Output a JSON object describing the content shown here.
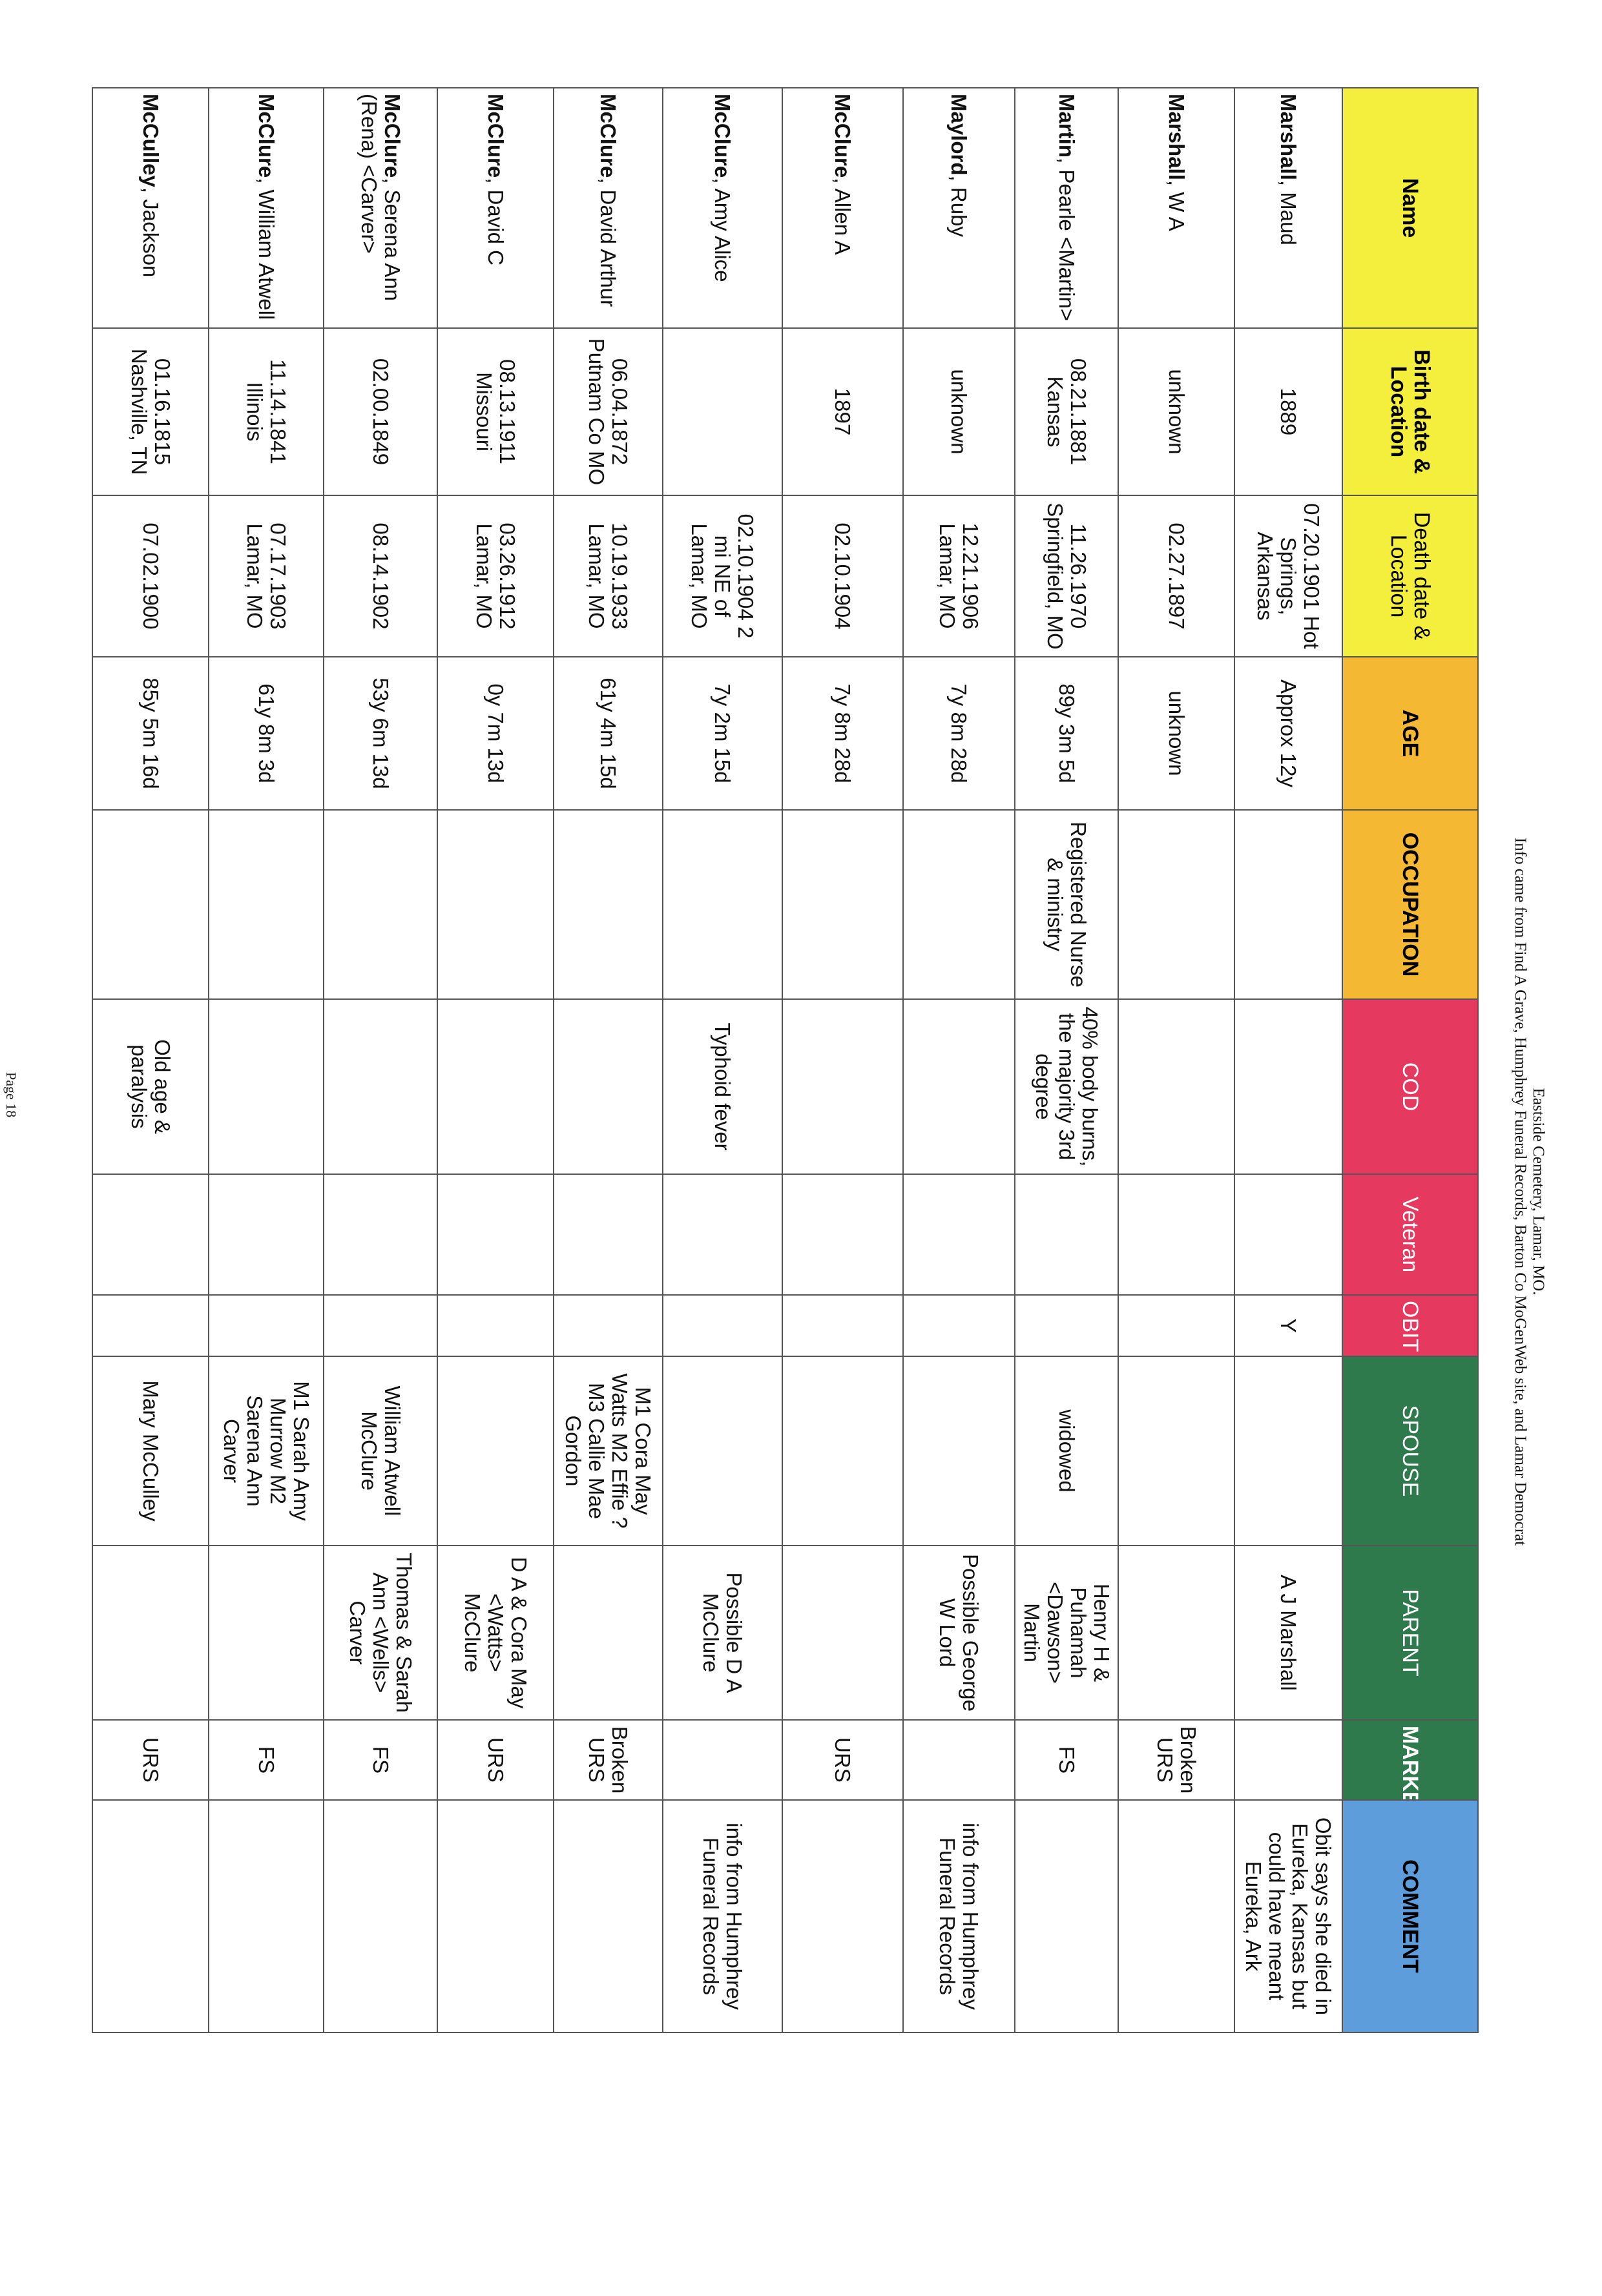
{
  "caption": {
    "title": "Eastside Cemetery, Lamar, MO.",
    "source": "Info came from Find A Grave, Humphrey Funeral Records, Barton Co MoGenWeb site, and Lamar Democrat"
  },
  "colors": {
    "yellow": "#f4ee3c",
    "orange": "#f5b833",
    "red": "#e6395f",
    "green": "#2f7a4c",
    "blue": "#5d9ddb"
  },
  "columns": [
    {
      "label": "Name",
      "color": "yellow",
      "bold": true,
      "text": "#000"
    },
    {
      "label": "Birth date & Location",
      "color": "yellow",
      "bold": true,
      "text": "#000"
    },
    {
      "label": "Death date & Location",
      "color": "yellow",
      "bold": false,
      "text": "#000"
    },
    {
      "label": "AGE",
      "color": "orange",
      "bold": true,
      "text": "#000"
    },
    {
      "label": "OCCUPATION",
      "color": "orange",
      "bold": true,
      "text": "#000"
    },
    {
      "label": "COD",
      "color": "red",
      "bold": false,
      "text": "#fff"
    },
    {
      "label": "Veteran",
      "color": "red",
      "bold": false,
      "text": "#fff"
    },
    {
      "label": "OBIT",
      "color": "red",
      "bold": false,
      "text": "#fff"
    },
    {
      "label": "SPOUSE",
      "color": "green",
      "bold": false,
      "text": "#fff"
    },
    {
      "label": "PARENT",
      "color": "green",
      "bold": false,
      "text": "#fff"
    },
    {
      "label": "MARKER",
      "color": "green",
      "bold": true,
      "text": "#fff"
    },
    {
      "label": "COMMENT",
      "color": "blue",
      "bold": true,
      "text": "#000"
    }
  ],
  "rows": [
    {
      "surname": "Marshall",
      "given": "Maud",
      "birth": "1889",
      "death": "07.20.1901 Hot Springs, Arkansas",
      "age": "Approx 12y",
      "occupation": "",
      "cod": "",
      "veteran": "",
      "obit": "Y",
      "spouse": "",
      "parent": "A J Marshall",
      "marker": "",
      "comment": "Obit says she died in Eureka, Kansas but could have meant Eureka, Ark"
    },
    {
      "surname": "Marshall",
      "given": "W A",
      "birth": "unknown",
      "death": "02.27.1897",
      "age": "unknown",
      "occupation": "",
      "cod": "",
      "veteran": "",
      "obit": "",
      "spouse": "",
      "parent": "",
      "marker": "Broken URS",
      "comment": ""
    },
    {
      "surname": "Martin",
      "given": "Pearle <Martin>",
      "birth": "08.21.1881 Kansas",
      "death": "11.26.1970 Springfield, MO",
      "age": "89y 3m 5d",
      "occupation": "Registered Nurse & ministry",
      "cod": "40% body burns, the majority 3rd degree",
      "veteran": "",
      "obit": "",
      "spouse": "widowed",
      "parent": "Henry H & Puhamah <Dawson> Martin",
      "marker": "FS",
      "comment": ""
    },
    {
      "surname": "Maylord",
      "given": "Ruby",
      "birth": "unknown",
      "death": "12.21.1906 Lamar, MO",
      "age": "7y 8m 28d",
      "occupation": "",
      "cod": "",
      "veteran": "",
      "obit": "",
      "spouse": "",
      "parent": "Possible George W Lord",
      "marker": "",
      "comment": "info from Humphrey Funeral Records"
    },
    {
      "surname": "McClure",
      "given": "Allen A",
      "birth": "1897",
      "death": "02.10.1904",
      "age": "7y 8m 28d",
      "occupation": "",
      "cod": "",
      "veteran": "",
      "obit": "",
      "spouse": "",
      "parent": "",
      "marker": "URS",
      "comment": ""
    },
    {
      "surname": "McClure",
      "given": "Amy Alice",
      "birth": "",
      "death": "02.10.1904 2 mi NE of Lamar, MO",
      "age": "7y 2m 15d",
      "occupation": "",
      "cod": "Typhoid fever",
      "veteran": "",
      "obit": "",
      "spouse": "",
      "parent": "Possible D A McClure",
      "marker": "",
      "comment": "info from Humphrey Funeral Records"
    },
    {
      "surname": "McClure",
      "given": "David Arthur",
      "birth": "06.04.1872 Putnam Co MO",
      "death": "10.19.1933 Lamar, MO",
      "age": "61y 4m 15d",
      "occupation": "",
      "cod": "",
      "veteran": "",
      "obit": "",
      "spouse": "M1 Cora May Watts M2 Effie ? M3 Callie Mae Gordon",
      "parent": "",
      "marker": "Broken URS",
      "comment": ""
    },
    {
      "surname": "McClure",
      "given": "David C",
      "birth": "08.13.1911 Missouri",
      "death": "03.26.1912 Lamar, MO",
      "age": "0y 7m 13d",
      "occupation": "",
      "cod": "",
      "veteran": "",
      "obit": "",
      "spouse": "",
      "parent": "D A & Cora May <Watts> McClure",
      "marker": "URS",
      "comment": ""
    },
    {
      "surname": "McClure",
      "given": "Serena Ann (Rena) <Carver>",
      "birth": "02.00.1849",
      "death": "08.14.1902",
      "age": "53y 6m 13d",
      "occupation": "",
      "cod": "",
      "veteran": "",
      "obit": "",
      "spouse": "William Atwell McClure",
      "parent": "Thomas & Sarah Ann <Wells> Carver",
      "marker": "FS",
      "comment": ""
    },
    {
      "surname": "McClure",
      "given": "William Atwell",
      "birth": "11.14.1841 Illinois",
      "death": "07.17.1903 Lamar, MO",
      "age": "61y 8m 3d",
      "occupation": "",
      "cod": "",
      "veteran": "",
      "obit": "",
      "spouse": "M1 Sarah Amy Murrow M2 Sarena Ann Carver",
      "parent": "",
      "marker": "FS",
      "comment": ""
    },
    {
      "surname": "McCulley",
      "given": "Jackson",
      "birth": "01.16.1815 Nashville, TN",
      "death": "07.02.1900",
      "age": "85y 5m 16d",
      "occupation": "",
      "cod": "Old age & paralysis",
      "veteran": "",
      "obit": "",
      "spouse": "Mary McCulley",
      "parent": "",
      "marker": "URS",
      "comment": ""
    }
  ],
  "footer": {
    "page": "Page 18"
  }
}
